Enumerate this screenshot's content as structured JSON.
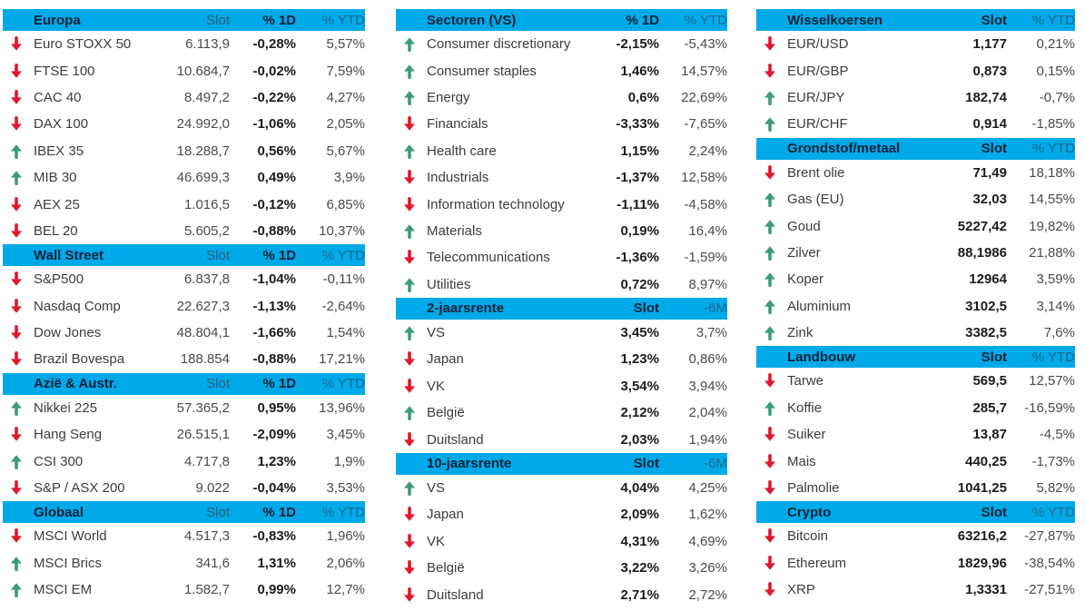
{
  "colors": {
    "header_bg": "#00A9E8",
    "header_title": "#0D2137",
    "header_col_muted": "#2E5F78",
    "header_col_light": "#1C6A96",
    "up_arrow": "#3D9B78",
    "down_arrow": "#E0182D",
    "name_text": "#3C3C3C",
    "value_text": "#4A4A4A",
    "value_bold_text": "#1C1C1C"
  },
  "chart_data": [
    {
      "type": "table",
      "panel": "left",
      "title": "Europa",
      "columns": [
        "Slot",
        "% 1D",
        "% YTD"
      ],
      "rows": [
        {
          "dir": "down",
          "name": "Euro STOXX 50",
          "values": [
            "6.113,9",
            "-0,28%",
            "5,57%"
          ]
        },
        {
          "dir": "down",
          "name": "FTSE 100",
          "values": [
            "10.684,7",
            "-0,02%",
            "7,59%"
          ]
        },
        {
          "dir": "down",
          "name": "CAC 40",
          "values": [
            "8.497,2",
            "-0,22%",
            "4,27%"
          ]
        },
        {
          "dir": "down",
          "name": "DAX 100",
          "values": [
            "24.992,0",
            "-1,06%",
            "2,05%"
          ]
        },
        {
          "dir": "up",
          "name": "IBEX 35",
          "values": [
            "18.288,7",
            "0,56%",
            "5,67%"
          ]
        },
        {
          "dir": "up",
          "name": "MIB 30",
          "values": [
            "46.699,3",
            "0,49%",
            "3,9%"
          ]
        },
        {
          "dir": "down",
          "name": "AEX 25",
          "values": [
            "1.016,5",
            "-0,12%",
            "6,85%"
          ]
        },
        {
          "dir": "down",
          "name": "BEL 20",
          "values": [
            "5.605,2",
            "-0,88%",
            "10,37%"
          ]
        }
      ]
    },
    {
      "type": "table",
      "panel": "left",
      "title": "Wall Street",
      "columns": [
        "Slot",
        "% 1D",
        "% YTD"
      ],
      "rows": [
        {
          "dir": "down",
          "name": "S&P500",
          "values": [
            "6.837,8",
            "-1,04%",
            "-0,11%"
          ]
        },
        {
          "dir": "down",
          "name": "Nasdaq Comp",
          "values": [
            "22.627,3",
            "-1,13%",
            "-2,64%"
          ]
        },
        {
          "dir": "down",
          "name": "Dow Jones",
          "values": [
            "48.804,1",
            "-1,66%",
            "1,54%"
          ]
        },
        {
          "dir": "down",
          "name": "Brazil Bovespa",
          "values": [
            "188.854",
            "-0,88%",
            "17,21%"
          ]
        }
      ]
    },
    {
      "type": "table",
      "panel": "left",
      "title": "Azië & Austr.",
      "columns": [
        "Slot",
        "% 1D",
        "% YTD"
      ],
      "rows": [
        {
          "dir": "up",
          "name": "Nikkei 225",
          "values": [
            "57.365,2",
            "0,95%",
            "13,96%"
          ]
        },
        {
          "dir": "down",
          "name": "Hang Seng",
          "values": [
            "26.515,1",
            "-2,09%",
            "3,45%"
          ]
        },
        {
          "dir": "up",
          "name": "CSI 300",
          "values": [
            "4.717,8",
            "1,23%",
            "1,9%"
          ]
        },
        {
          "dir": "down",
          "name": "S&P / ASX 200",
          "values": [
            "9.022",
            "-0,04%",
            "3,53%"
          ]
        }
      ]
    },
    {
      "type": "table",
      "panel": "left",
      "title": "Globaal",
      "columns": [
        "Slot",
        "% 1D",
        "% YTD"
      ],
      "rows": [
        {
          "dir": "down",
          "name": "MSCI World",
          "values": [
            "4.517,3",
            "-0,83%",
            "1,96%"
          ]
        },
        {
          "dir": "up",
          "name": "MSCI Brics",
          "values": [
            "341,6",
            "1,31%",
            "2,06%"
          ]
        },
        {
          "dir": "up",
          "name": "MSCI EM",
          "values": [
            "1.582,7",
            "0,99%",
            "12,7%"
          ]
        }
      ]
    },
    {
      "type": "table",
      "panel": "middle",
      "title": "Sectoren (VS)",
      "columns": [
        "% 1D",
        "% YTD"
      ],
      "rows": [
        {
          "dir": "up",
          "name": "Consumer discretionary",
          "values": [
            "-2,15%",
            "-5,43%"
          ]
        },
        {
          "dir": "up",
          "name": "Consumer staples",
          "values": [
            "1,46%",
            "14,57%"
          ]
        },
        {
          "dir": "up",
          "name": "Energy",
          "values": [
            "0,6%",
            "22,69%"
          ]
        },
        {
          "dir": "down",
          "name": "Financials",
          "values": [
            "-3,33%",
            "-7,65%"
          ]
        },
        {
          "dir": "up",
          "name": "Health care",
          "values": [
            "1,15%",
            "2,24%"
          ]
        },
        {
          "dir": "down",
          "name": "Industrials",
          "values": [
            "-1,37%",
            "12,58%"
          ]
        },
        {
          "dir": "down",
          "name": "Information technology",
          "values": [
            "-1,11%",
            "-4,58%"
          ]
        },
        {
          "dir": "up",
          "name": "Materials",
          "values": [
            "0,19%",
            "16,4%"
          ]
        },
        {
          "dir": "down",
          "name": "Telecommunications",
          "values": [
            "-1,36%",
            "-1,59%"
          ]
        },
        {
          "dir": "up",
          "name": "Utilities",
          "values": [
            "0,72%",
            "8,97%"
          ]
        }
      ]
    },
    {
      "type": "table",
      "panel": "middle",
      "title": "2-jaarsrente",
      "columns": [
        "Slot",
        "-6M"
      ],
      "rows": [
        {
          "dir": "up",
          "name": "VS",
          "values": [
            "3,45%",
            "3,7%"
          ]
        },
        {
          "dir": "down",
          "name": "Japan",
          "values": [
            "1,23%",
            "0,86%"
          ]
        },
        {
          "dir": "down",
          "name": "VK",
          "values": [
            "3,54%",
            "3,94%"
          ]
        },
        {
          "dir": "up",
          "name": "België",
          "values": [
            "2,12%",
            "2,04%"
          ]
        },
        {
          "dir": "down",
          "name": "Duitsland",
          "values": [
            "2,03%",
            "1,94%"
          ]
        }
      ]
    },
    {
      "type": "table",
      "panel": "middle",
      "title": "10-jaarsrente",
      "columns": [
        "Slot",
        "-6M"
      ],
      "rows": [
        {
          "dir": "up",
          "name": "VS",
          "values": [
            "4,04%",
            "4,25%"
          ]
        },
        {
          "dir": "down",
          "name": "Japan",
          "values": [
            "2,09%",
            "1,62%"
          ]
        },
        {
          "dir": "down",
          "name": "VK",
          "values": [
            "4,31%",
            "4,69%"
          ]
        },
        {
          "dir": "down",
          "name": "België",
          "values": [
            "3,22%",
            "3,26%"
          ]
        },
        {
          "dir": "down",
          "name": "Duitsland",
          "values": [
            "2,71%",
            "2,72%"
          ]
        }
      ]
    },
    {
      "type": "table",
      "panel": "right",
      "title": "Wisselkoersen",
      "columns": [
        "Slot",
        "% YTD"
      ],
      "rows": [
        {
          "dir": "down",
          "name": "EUR/USD",
          "values": [
            "1,177",
            "0,21%"
          ]
        },
        {
          "dir": "down",
          "name": "EUR/GBP",
          "values": [
            "0,873",
            "0,15%"
          ]
        },
        {
          "dir": "up",
          "name": "EUR/JPY",
          "values": [
            "182,74",
            "-0,7%"
          ]
        },
        {
          "dir": "up",
          "name": "EUR/CHF",
          "values": [
            "0,914",
            "-1,85%"
          ]
        }
      ]
    },
    {
      "type": "table",
      "panel": "right",
      "title": "Grondstof/metaal",
      "columns": [
        "Slot",
        "% YTD"
      ],
      "rows": [
        {
          "dir": "down",
          "name": "Brent olie",
          "values": [
            "71,49",
            "18,18%"
          ]
        },
        {
          "dir": "up",
          "name": "Gas (EU)",
          "values": [
            "32,03",
            "14,55%"
          ]
        },
        {
          "dir": "up",
          "name": "Goud",
          "values": [
            "5227,42",
            "19,82%"
          ]
        },
        {
          "dir": "up",
          "name": "Zilver",
          "values": [
            "88,1986",
            "21,88%"
          ]
        },
        {
          "dir": "up",
          "name": "Koper",
          "values": [
            "12964",
            "3,59%"
          ]
        },
        {
          "dir": "up",
          "name": "Aluminium",
          "values": [
            "3102,5",
            "3,14%"
          ]
        },
        {
          "dir": "up",
          "name": "Zink",
          "values": [
            "3382,5",
            "7,6%"
          ]
        }
      ]
    },
    {
      "type": "table",
      "panel": "right",
      "title": "Landbouw",
      "columns": [
        "Slot",
        "% YTD"
      ],
      "rows": [
        {
          "dir": "down",
          "name": "Tarwe",
          "values": [
            "569,5",
            "12,57%"
          ]
        },
        {
          "dir": "up",
          "name": "Koffie",
          "values": [
            "285,7",
            "-16,59%"
          ]
        },
        {
          "dir": "down",
          "name": "Suiker",
          "values": [
            "13,87",
            "-4,5%"
          ]
        },
        {
          "dir": "down",
          "name": "Mais",
          "values": [
            "440,25",
            "-1,73%"
          ]
        },
        {
          "dir": "down",
          "name": "Palmolie",
          "values": [
            "1041,25",
            "5,82%"
          ]
        }
      ]
    },
    {
      "type": "table",
      "panel": "right",
      "title": "Crypto",
      "columns": [
        "Slot",
        "% YTD"
      ],
      "rows": [
        {
          "dir": "down",
          "name": "Bitcoin",
          "values": [
            "63216,2",
            "-27,87%"
          ]
        },
        {
          "dir": "down",
          "name": "Ethereum",
          "values": [
            "1829,96",
            "-38,54%"
          ]
        },
        {
          "dir": "down",
          "name": "XRP",
          "values": [
            "1,3331",
            "-27,51%"
          ]
        }
      ]
    }
  ]
}
